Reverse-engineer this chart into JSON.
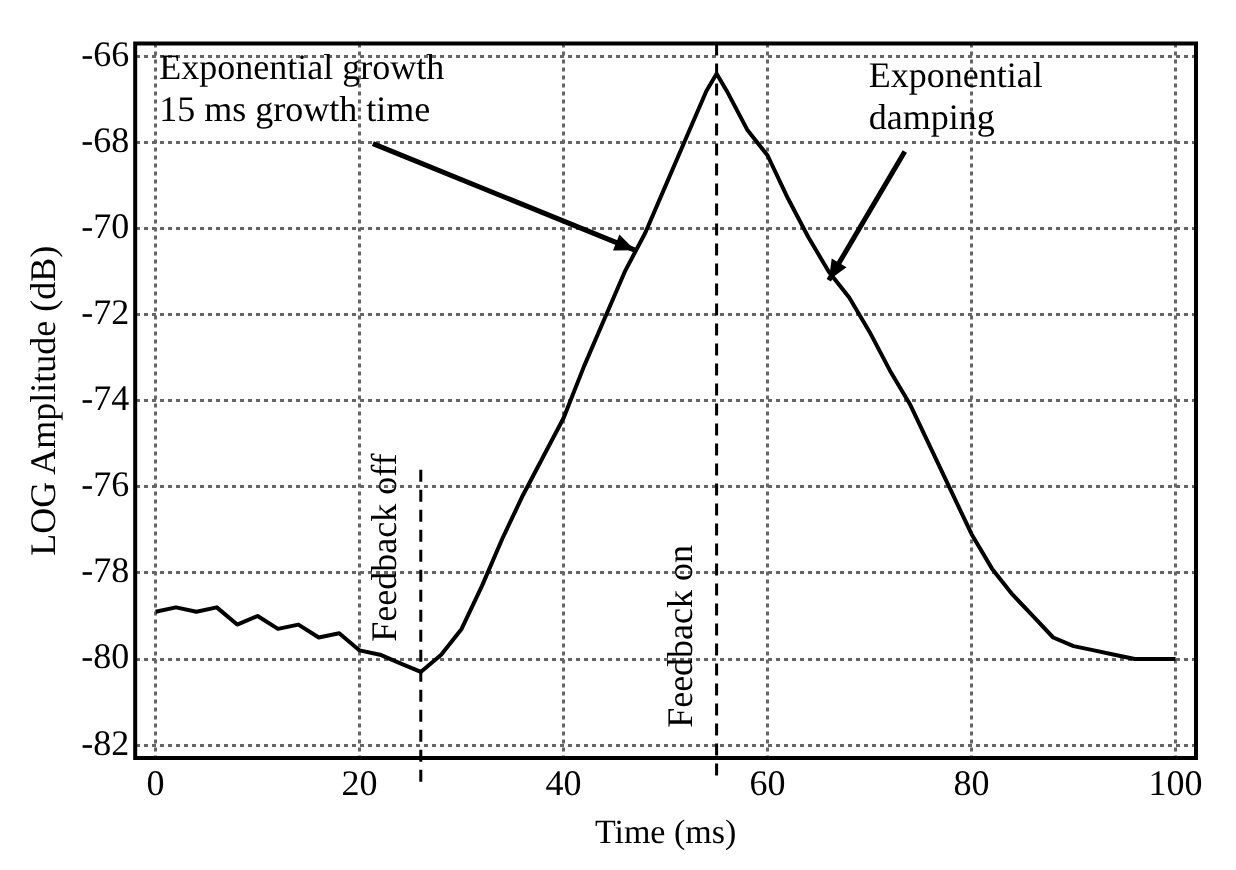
{
  "chart_data": {
    "type": "line",
    "xlabel": "Time (ms)",
    "ylabel": "LOG Amplitude (dB)",
    "x": [
      0,
      2,
      4,
      6,
      8,
      10,
      12,
      14,
      16,
      18,
      20,
      22,
      24,
      26,
      28,
      30,
      32,
      34,
      36,
      38,
      40,
      42,
      44,
      46,
      48,
      50,
      52,
      54,
      55,
      56,
      58,
      60,
      62,
      64,
      66,
      68,
      70,
      72,
      74,
      76,
      78,
      80,
      82,
      84,
      86,
      88,
      90,
      92,
      94,
      96,
      98,
      100
    ],
    "series": [
      {
        "color": "#000000",
        "values": [
          -78.9,
          -78.8,
          -78.9,
          -78.8,
          -79.2,
          -79.0,
          -79.3,
          -79.2,
          -79.5,
          -79.4,
          -79.8,
          -79.9,
          -80.1,
          -80.3,
          -79.9,
          -79.3,
          -78.3,
          -77.2,
          -76.2,
          -75.3,
          -74.4,
          -73.2,
          -72.1,
          -71.0,
          -70.1,
          -69.0,
          -67.9,
          -66.8,
          -66.4,
          -66.8,
          -67.7,
          -68.3,
          -69.3,
          -70.2,
          -71.0,
          -71.6,
          -72.4,
          -73.3,
          -74.1,
          -75.1,
          -76.1,
          -77.1,
          -77.9,
          -78.5,
          -79.0,
          -79.5,
          -79.7,
          -79.8,
          -79.9,
          -80.0,
          -80.0,
          -80.0
        ]
      }
    ],
    "xlim": [
      -2,
      102
    ],
    "ylim": [
      -82.3,
      -65.7
    ],
    "xticks": [
      0,
      20,
      40,
      60,
      80,
      100
    ],
    "yticks": [
      -82,
      -80,
      -78,
      -76,
      -74,
      -72,
      -70,
      -68,
      -66
    ],
    "grid": true,
    "legend": false,
    "line_style": "solid",
    "marker": "none",
    "ref_lines": [
      {
        "axis": "x",
        "value": 26,
        "label": "Feedback off",
        "line_style": "dashed"
      },
      {
        "axis": "x",
        "value": 55,
        "label": "Feedback on",
        "line_style": "dashed"
      }
    ],
    "annotations": [
      {
        "text": "Exponential growth 15 ms growth time",
        "x": 47,
        "y": -70.5
      },
      {
        "text": "Exponential damping",
        "x": 66,
        "y": -71.2
      }
    ]
  }
}
